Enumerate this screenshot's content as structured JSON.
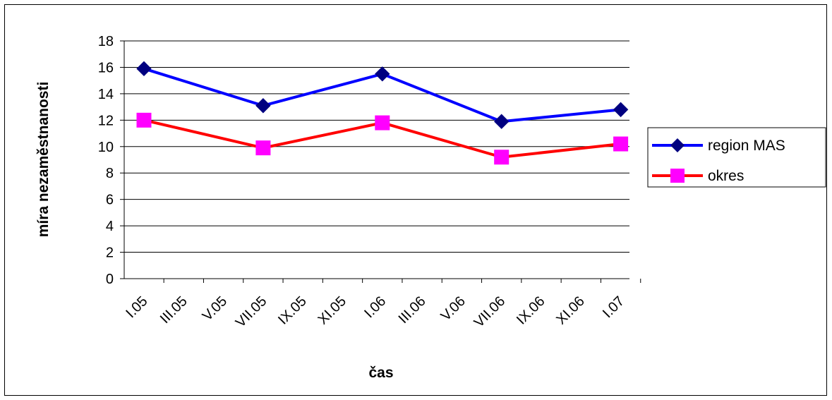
{
  "chart_data": {
    "type": "line",
    "categories": [
      "I.05",
      "III.05",
      "V.05",
      "VII.05",
      "IX.05",
      "XI.05",
      "I.06",
      "III.06",
      "V.06",
      "VII.06",
      "IX.06",
      "XI.06",
      "I.07"
    ],
    "series": [
      {
        "name": "region MAS",
        "color": "#0000ff",
        "marker_color": "#000080",
        "marker": "diamond",
        "points": [
          {
            "x": "I.05",
            "y": 15.9
          },
          {
            "x": "VII.05",
            "y": 13.1
          },
          {
            "x": "I.06",
            "y": 15.5
          },
          {
            "x": "VII.06",
            "y": 11.9
          },
          {
            "x": "I.07",
            "y": 12.8
          }
        ]
      },
      {
        "name": "okres",
        "color": "#ff0000",
        "marker_color": "#ff00ff",
        "marker": "square",
        "points": [
          {
            "x": "I.05",
            "y": 12.0
          },
          {
            "x": "VII.05",
            "y": 9.9
          },
          {
            "x": "I.06",
            "y": 11.8
          },
          {
            "x": "VII.06",
            "y": 9.2
          },
          {
            "x": "I.07",
            "y": 10.2
          }
        ]
      }
    ],
    "yticks": [
      "0",
      "2",
      "4",
      "6",
      "8",
      "10",
      "12",
      "14",
      "16",
      "18"
    ],
    "ylim": [
      0,
      18
    ],
    "xlabel": "čas",
    "ylabel": "míra nezaměstnanosti",
    "grid": "horizontal",
    "legend": "right"
  }
}
